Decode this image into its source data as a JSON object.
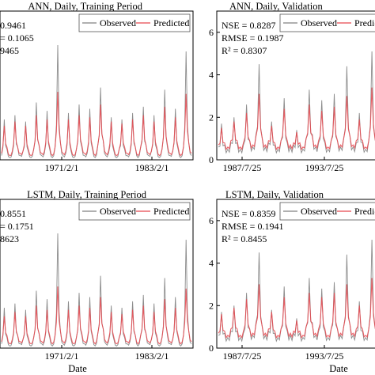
{
  "chart_data": [
    {
      "type": "line",
      "title": "ANN, Daily, Training Period",
      "metrics": [
        "0.9461",
        "= 0.1065",
        "9465"
      ],
      "legend": [
        "Observed",
        "Predicted"
      ],
      "x_ticks": [
        "1971/2/1",
        "1983/2/1"
      ],
      "y_ticks": [],
      "xlabel": "",
      "ylabel": "",
      "legend_position": "top-right",
      "series": [
        {
          "name": "Observed",
          "color": "#808080",
          "values": [
            0.2,
            1.9,
            0.5,
            0.1,
            0.3,
            2.1,
            0.6,
            0.2,
            0.4,
            1.8,
            0.4,
            0.1,
            0.5,
            2.7,
            0.7,
            0.2,
            0.3,
            2.3,
            0.5,
            0.1,
            0.6,
            5.4,
            0.8,
            0.2,
            0.3,
            2.2,
            0.4,
            0.1,
            0.5,
            2.6,
            0.6,
            0.2,
            0.3,
            2.4,
            0.5,
            0.1,
            0.7,
            3.4,
            0.9,
            0.2,
            0.3,
            2.0,
            0.4,
            0.1,
            0.5,
            1.9,
            0.5,
            0.2,
            0.3,
            2.2,
            0.6,
            0.1,
            0.6,
            2.5,
            0.7,
            0.2,
            0.4,
            2.1,
            0.5,
            0.1,
            0.5,
            3.3,
            0.6,
            0.2,
            0.4,
            2.4,
            0.5,
            0.1,
            0.6,
            5.1,
            0.8,
            0.2
          ]
        },
        {
          "name": "Predicted",
          "color": "#e8474d",
          "values": [
            0.3,
            1.6,
            0.6,
            0.2,
            0.4,
            1.8,
            0.6,
            0.3,
            0.4,
            1.6,
            0.5,
            0.2,
            0.5,
            2.1,
            0.7,
            0.3,
            0.4,
            1.9,
            0.6,
            0.2,
            0.6,
            3.2,
            0.8,
            0.3,
            0.4,
            1.9,
            0.5,
            0.2,
            0.5,
            2.1,
            0.7,
            0.3,
            0.4,
            2.0,
            0.6,
            0.2,
            0.7,
            2.6,
            0.9,
            0.3,
            0.4,
            1.8,
            0.5,
            0.2,
            0.5,
            1.7,
            0.6,
            0.3,
            0.4,
            1.9,
            0.6,
            0.2,
            0.6,
            2.1,
            0.7,
            0.3,
            0.4,
            1.8,
            0.6,
            0.2,
            0.5,
            2.5,
            0.7,
            0.3,
            0.4,
            2.0,
            0.6,
            0.2,
            0.6,
            3.1,
            0.8,
            0.3
          ]
        }
      ]
    },
    {
      "type": "line",
      "title": "ANN, Daily, Validation",
      "metrics": [
        "NSE = 0.8287",
        "RMSE = 0.1987",
        "R² = 0.8307"
      ],
      "legend": [
        "Observed",
        "Predicted"
      ],
      "x_ticks": [
        "1987/7/25",
        "1993/7/25"
      ],
      "y_ticks": [
        "0",
        "2",
        "4",
        "6"
      ],
      "ylim": [
        0,
        7
      ],
      "xlabel": "",
      "ylabel": "",
      "legend_position": "top-right",
      "series": [
        {
          "name": "Observed",
          "color": "#808080",
          "values": [
            0.6,
            1.7,
            0.7,
            0.5,
            0.8,
            2.0,
            0.8,
            0.5,
            0.7,
            2.6,
            0.9,
            0.6,
            1.2,
            4.5,
            1.0,
            0.6,
            0.8,
            1.8,
            0.7,
            0.5,
            0.9,
            2.9,
            0.8,
            0.6,
            0.7,
            1.4,
            0.7,
            0.5,
            1.0,
            3.3,
            1.2,
            0.6,
            0.8,
            2.8,
            0.8,
            0.5,
            0.9,
            3.1,
            0.9,
            0.6,
            1.0,
            4.4,
            1.1,
            0.6,
            0.8,
            2.2,
            0.8,
            0.5,
            0.9,
            5.1,
            1.0,
            0.6
          ]
        },
        {
          "name": "Predicted",
          "color": "#e8474d",
          "values": [
            0.7,
            1.5,
            0.8,
            0.6,
            0.9,
            1.8,
            0.9,
            0.6,
            0.8,
            2.2,
            0.9,
            0.7,
            1.1,
            3.1,
            1.0,
            0.7,
            0.9,
            1.6,
            0.8,
            0.6,
            0.9,
            2.4,
            0.9,
            0.7,
            0.8,
            1.3,
            0.8,
            0.6,
            1.0,
            2.6,
            1.1,
            0.7,
            0.9,
            2.3,
            0.9,
            0.6,
            0.9,
            2.5,
            0.9,
            0.7,
            1.0,
            3.0,
            1.1,
            0.7,
            0.9,
            1.9,
            0.9,
            0.6,
            0.9,
            3.4,
            1.0,
            0.7
          ]
        }
      ]
    },
    {
      "type": "line",
      "title": "LSTM, Daily, Training Period",
      "metrics": [
        "0.8551",
        "= 0.1751",
        "8623"
      ],
      "legend": [
        "Observed",
        "Predicted"
      ],
      "x_ticks": [
        "1971/2/1",
        "1983/2/1"
      ],
      "y_ticks": [],
      "xlabel": "Date",
      "ylabel": "",
      "legend_position": "top-right",
      "series": [
        {
          "name": "Observed",
          "color": "#808080",
          "values": [
            0.2,
            1.9,
            0.5,
            0.1,
            0.3,
            2.1,
            0.6,
            0.2,
            0.4,
            1.8,
            0.4,
            0.1,
            0.5,
            2.7,
            0.7,
            0.2,
            0.3,
            2.3,
            0.5,
            0.1,
            0.6,
            5.4,
            0.8,
            0.2,
            0.3,
            2.2,
            0.4,
            0.1,
            0.5,
            2.6,
            0.6,
            0.2,
            0.3,
            2.4,
            0.5,
            0.1,
            0.7,
            3.4,
            0.9,
            0.2,
            0.3,
            2.0,
            0.4,
            0.1,
            0.5,
            1.9,
            0.5,
            0.2,
            0.3,
            2.2,
            0.6,
            0.1,
            0.6,
            2.5,
            0.7,
            0.2,
            0.4,
            2.1,
            0.5,
            0.1,
            0.5,
            3.3,
            0.6,
            0.2,
            0.4,
            2.4,
            0.5,
            0.1,
            0.6,
            5.1,
            0.8,
            0.2
          ]
        },
        {
          "name": "Predicted",
          "color": "#e8474d",
          "values": [
            0.3,
            1.5,
            0.6,
            0.2,
            0.4,
            1.7,
            0.6,
            0.3,
            0.4,
            1.5,
            0.5,
            0.2,
            0.5,
            2.0,
            0.7,
            0.3,
            0.4,
            1.8,
            0.6,
            0.2,
            0.6,
            2.9,
            0.8,
            0.3,
            0.4,
            1.8,
            0.5,
            0.2,
            0.5,
            2.0,
            0.7,
            0.3,
            0.4,
            1.9,
            0.6,
            0.2,
            0.7,
            2.4,
            0.9,
            0.3,
            0.4,
            1.7,
            0.5,
            0.2,
            0.5,
            1.6,
            0.6,
            0.3,
            0.4,
            1.8,
            0.6,
            0.2,
            0.6,
            2.0,
            0.7,
            0.3,
            0.4,
            1.7,
            0.6,
            0.2,
            0.5,
            2.3,
            0.7,
            0.3,
            0.4,
            1.9,
            0.6,
            0.2,
            0.6,
            2.8,
            0.8,
            0.3
          ]
        }
      ]
    },
    {
      "type": "line",
      "title": "LSTM, Daily, Validation",
      "metrics": [
        "NSE = 0.8359",
        "RMSE = 0.1941",
        "R² = 0.8455"
      ],
      "legend": [
        "Observed",
        "Predicted"
      ],
      "x_ticks": [
        "1987/7/25",
        "1993/7/25"
      ],
      "y_ticks": [
        "0",
        "2",
        "4",
        "6"
      ],
      "ylim": [
        0,
        7
      ],
      "xlabel": "Date",
      "ylabel": "",
      "legend_position": "top-right",
      "series": [
        {
          "name": "Observed",
          "color": "#808080",
          "values": [
            0.6,
            1.7,
            0.7,
            0.5,
            0.8,
            2.0,
            0.8,
            0.5,
            0.7,
            2.6,
            0.9,
            0.6,
            1.2,
            4.5,
            1.0,
            0.6,
            0.8,
            1.8,
            0.7,
            0.5,
            0.9,
            2.9,
            0.8,
            0.6,
            0.7,
            1.4,
            0.7,
            0.5,
            1.0,
            3.3,
            1.2,
            0.6,
            0.8,
            2.8,
            0.8,
            0.5,
            0.9,
            3.1,
            0.9,
            0.6,
            1.0,
            4.4,
            1.1,
            0.6,
            0.8,
            2.2,
            0.8,
            0.5,
            0.9,
            5.1,
            1.0,
            0.6
          ]
        },
        {
          "name": "Predicted",
          "color": "#e8474d",
          "values": [
            0.7,
            1.6,
            0.8,
            0.6,
            0.9,
            1.9,
            0.9,
            0.6,
            0.8,
            2.3,
            0.9,
            0.7,
            1.1,
            3.0,
            1.0,
            0.7,
            0.9,
            1.7,
            0.8,
            0.6,
            0.9,
            2.4,
            0.9,
            0.7,
            0.8,
            1.3,
            0.8,
            0.6,
            1.0,
            2.6,
            1.1,
            0.7,
            0.9,
            2.4,
            0.9,
            0.6,
            0.9,
            2.6,
            0.9,
            0.7,
            1.0,
            3.0,
            1.1,
            0.7,
            0.9,
            2.0,
            0.9,
            0.6,
            0.9,
            3.3,
            1.0,
            0.7
          ]
        }
      ]
    }
  ]
}
